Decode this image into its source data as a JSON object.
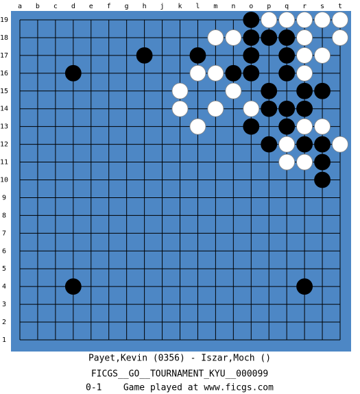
{
  "board": {
    "columns": [
      "a",
      "b",
      "c",
      "d",
      "e",
      "f",
      "g",
      "h",
      "j",
      "k",
      "l",
      "m",
      "n",
      "o",
      "p",
      "q",
      "r",
      "s",
      "t"
    ],
    "rows": [
      19,
      18,
      17,
      16,
      15,
      14,
      13,
      12,
      11,
      10,
      9,
      8,
      7,
      6,
      5,
      4,
      3,
      2,
      1
    ],
    "black": [
      "o19",
      "o18",
      "p18",
      "q18",
      "h17",
      "l17",
      "o17",
      "q17",
      "d16",
      "n16",
      "o16",
      "q16",
      "p15",
      "r15",
      "s15",
      "p14",
      "q14",
      "r14",
      "o13",
      "q13",
      "p12",
      "r12",
      "s12",
      "s11",
      "s10",
      "d4",
      "r4"
    ],
    "white": [
      "p19",
      "q19",
      "r19",
      "s19",
      "t19",
      "m18",
      "n18",
      "r18",
      "t18",
      "r17",
      "s17",
      "l16",
      "m16",
      "r16",
      "k15",
      "n15",
      "k14",
      "m14",
      "o14",
      "l13",
      "r13",
      "s13",
      "q12",
      "t12",
      "q11",
      "r11"
    ]
  },
  "footer": [
    "Payet,Kevin (0356) - Iszar,Moch ()",
    "FICGS__GO__TOURNAMENT_KYU__000099",
    "0-1    Game played at www.ficgs.com"
  ]
}
